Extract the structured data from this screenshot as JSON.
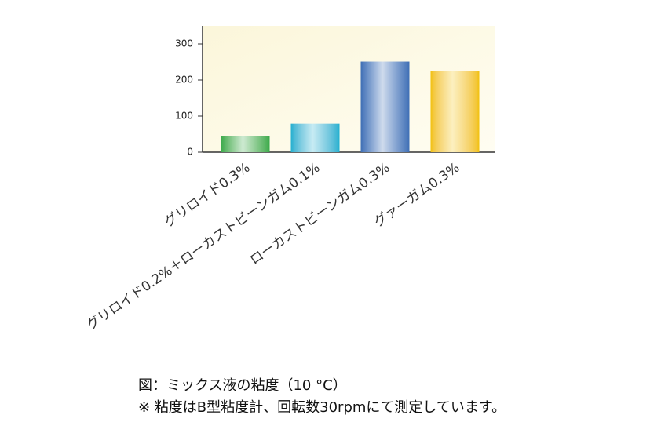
{
  "chart_data": {
    "type": "bar",
    "categories": [
      "グリロイド0.3%",
      "グリロイド0.2%＋ローカストビーンガム0.1%",
      "ローカストビーンガム0.3%",
      "グァーガム0.3%"
    ],
    "values": [
      44,
      79,
      251,
      224
    ],
    "colors": [
      "#3aaa4a",
      "#1fb0d0",
      "#3f6fb5",
      "#f2c100"
    ],
    "ylim": [
      0,
      350
    ],
    "yticks": [
      0,
      100,
      200,
      300
    ],
    "caption": [
      "図：ミックス液の粘度（10 °C）",
      "※ 粘度はB型粘度計、回転数30rpmにて測定しています。"
    ]
  }
}
